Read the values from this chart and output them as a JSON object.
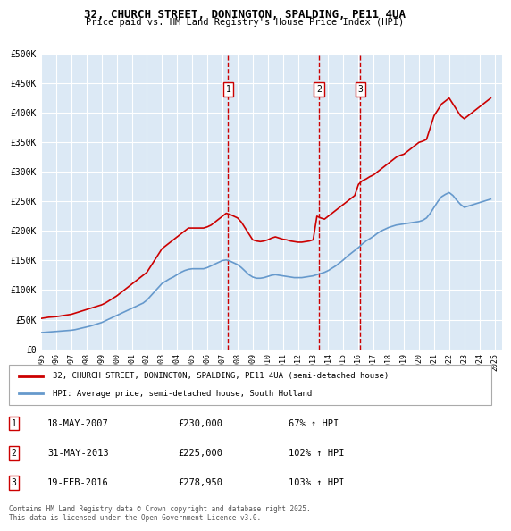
{
  "title": "32, CHURCH STREET, DONINGTON, SPALDING, PE11 4UA",
  "subtitle": "Price paid vs. HM Land Registry's House Price Index (HPI)",
  "bg_color": "#dce9f5",
  "plot_bg_color": "#dce9f5",
  "red_line_color": "#cc0000",
  "blue_line_color": "#6699cc",
  "ylim": [
    0,
    500000
  ],
  "yticks": [
    0,
    50000,
    100000,
    150000,
    200000,
    250000,
    300000,
    350000,
    400000,
    450000,
    500000
  ],
  "ytick_labels": [
    "£0",
    "£50K",
    "£100K",
    "£150K",
    "£200K",
    "£250K",
    "£300K",
    "£350K",
    "£400K",
    "£450K",
    "£500K"
  ],
  "transaction_dates": [
    "2007-05-18",
    "2013-05-31",
    "2016-02-19"
  ],
  "transaction_prices": [
    230000,
    225000,
    278950
  ],
  "transaction_labels": [
    "1",
    "2",
    "3"
  ],
  "vline_color": "#cc0000",
  "legend_entries": [
    "32, CHURCH STREET, DONINGTON, SPALDING, PE11 4UA (semi-detached house)",
    "HPI: Average price, semi-detached house, South Holland"
  ],
  "table_entries": [
    {
      "num": "1",
      "date": "18-MAY-2007",
      "price": "£230,000",
      "hpi": "67% ↑ HPI"
    },
    {
      "num": "2",
      "date": "31-MAY-2013",
      "price": "£225,000",
      "hpi": "102% ↑ HPI"
    },
    {
      "num": "3",
      "date": "19-FEB-2016",
      "price": "£278,950",
      "hpi": "103% ↑ HPI"
    }
  ],
  "footer": "Contains HM Land Registry data © Crown copyright and database right 2025.\nThis data is licensed under the Open Government Licence v3.0.",
  "red_data": {
    "years": [
      1995.0,
      1995.25,
      1995.5,
      1995.75,
      1996.0,
      1996.25,
      1996.5,
      1996.75,
      1997.0,
      1997.25,
      1997.5,
      1997.75,
      1998.0,
      1998.25,
      1998.5,
      1998.75,
      1999.0,
      1999.25,
      1999.5,
      1999.75,
      2000.0,
      2000.25,
      2000.5,
      2000.75,
      2001.0,
      2001.25,
      2001.5,
      2001.75,
      2002.0,
      2002.25,
      2002.5,
      2002.75,
      2003.0,
      2003.25,
      2003.5,
      2003.75,
      2004.0,
      2004.25,
      2004.5,
      2004.75,
      2005.0,
      2005.25,
      2005.5,
      2005.75,
      2006.0,
      2006.25,
      2006.5,
      2006.75,
      2007.0,
      2007.25,
      2007.5,
      2007.75,
      2008.0,
      2008.25,
      2008.5,
      2008.75,
      2009.0,
      2009.25,
      2009.5,
      2009.75,
      2010.0,
      2010.25,
      2010.5,
      2010.75,
      2011.0,
      2011.25,
      2011.5,
      2011.75,
      2012.0,
      2012.25,
      2012.5,
      2012.75,
      2013.0,
      2013.25,
      2013.5,
      2013.75,
      2014.0,
      2014.25,
      2014.5,
      2014.75,
      2015.0,
      2015.25,
      2015.5,
      2015.75,
      2016.0,
      2016.25,
      2016.5,
      2016.75,
      2017.0,
      2017.25,
      2017.5,
      2017.75,
      2018.0,
      2018.25,
      2018.5,
      2018.75,
      2019.0,
      2019.25,
      2019.5,
      2019.75,
      2020.0,
      2020.25,
      2020.5,
      2020.75,
      2021.0,
      2021.25,
      2021.5,
      2021.75,
      2022.0,
      2022.25,
      2022.5,
      2022.75,
      2023.0,
      2023.25,
      2023.5,
      2023.75,
      2024.0,
      2024.25,
      2024.5,
      2024.75
    ],
    "values": [
      52000,
      53000,
      54000,
      54500,
      55000,
      56000,
      57000,
      58000,
      59000,
      61000,
      63000,
      65000,
      67000,
      69000,
      71000,
      73000,
      75000,
      78000,
      82000,
      86000,
      90000,
      95000,
      100000,
      105000,
      110000,
      115000,
      120000,
      125000,
      130000,
      140000,
      150000,
      160000,
      170000,
      175000,
      180000,
      185000,
      190000,
      195000,
      200000,
      205000,
      205000,
      205000,
      205000,
      205000,
      207000,
      210000,
      215000,
      220000,
      225000,
      230000,
      228000,
      225000,
      222000,
      215000,
      205000,
      195000,
      185000,
      183000,
      182000,
      183000,
      185000,
      188000,
      190000,
      188000,
      186000,
      185000,
      183000,
      182000,
      181000,
      181000,
      182000,
      183000,
      185000,
      225000,
      222000,
      220000,
      225000,
      230000,
      235000,
      240000,
      245000,
      250000,
      255000,
      260000,
      278950,
      285000,
      288000,
      292000,
      295000,
      300000,
      305000,
      310000,
      315000,
      320000,
      325000,
      328000,
      330000,
      335000,
      340000,
      345000,
      350000,
      352000,
      355000,
      375000,
      395000,
      405000,
      415000,
      420000,
      425000,
      415000,
      405000,
      395000,
      390000,
      395000,
      400000,
      405000,
      410000,
      415000,
      420000,
      425000
    ]
  },
  "blue_data": {
    "years": [
      1995.0,
      1995.25,
      1995.5,
      1995.75,
      1996.0,
      1996.25,
      1996.5,
      1996.75,
      1997.0,
      1997.25,
      1997.5,
      1997.75,
      1998.0,
      1998.25,
      1998.5,
      1998.75,
      1999.0,
      1999.25,
      1999.5,
      1999.75,
      2000.0,
      2000.25,
      2000.5,
      2000.75,
      2001.0,
      2001.25,
      2001.5,
      2001.75,
      2002.0,
      2002.25,
      2002.5,
      2002.75,
      2003.0,
      2003.25,
      2003.5,
      2003.75,
      2004.0,
      2004.25,
      2004.5,
      2004.75,
      2005.0,
      2005.25,
      2005.5,
      2005.75,
      2006.0,
      2006.25,
      2006.5,
      2006.75,
      2007.0,
      2007.25,
      2007.5,
      2007.75,
      2008.0,
      2008.25,
      2008.5,
      2008.75,
      2009.0,
      2009.25,
      2009.5,
      2009.75,
      2010.0,
      2010.25,
      2010.5,
      2010.75,
      2011.0,
      2011.25,
      2011.5,
      2011.75,
      2012.0,
      2012.25,
      2012.5,
      2012.75,
      2013.0,
      2013.25,
      2013.5,
      2013.75,
      2014.0,
      2014.25,
      2014.5,
      2014.75,
      2015.0,
      2015.25,
      2015.5,
      2015.75,
      2016.0,
      2016.25,
      2016.5,
      2016.75,
      2017.0,
      2017.25,
      2017.5,
      2017.75,
      2018.0,
      2018.25,
      2018.5,
      2018.75,
      2019.0,
      2019.25,
      2019.5,
      2019.75,
      2020.0,
      2020.25,
      2020.5,
      2020.75,
      2021.0,
      2021.25,
      2021.5,
      2021.75,
      2022.0,
      2022.25,
      2022.5,
      2022.75,
      2023.0,
      2023.25,
      2023.5,
      2023.75,
      2024.0,
      2024.25,
      2024.5,
      2024.75
    ],
    "values": [
      28000,
      28500,
      29000,
      29500,
      30000,
      30500,
      31000,
      31500,
      32000,
      33000,
      34500,
      36000,
      37500,
      39000,
      41000,
      43000,
      45000,
      48000,
      51000,
      54000,
      57000,
      60000,
      63000,
      66000,
      69000,
      72000,
      75000,
      78000,
      83000,
      90000,
      97000,
      104000,
      111000,
      115000,
      119000,
      122000,
      126000,
      130000,
      133000,
      135000,
      136000,
      136000,
      136000,
      136000,
      138000,
      141000,
      144000,
      147000,
      150000,
      151000,
      149000,
      146000,
      143000,
      138000,
      132000,
      126000,
      122000,
      120000,
      120000,
      121000,
      123000,
      125000,
      126000,
      125000,
      124000,
      123000,
      122000,
      121000,
      121000,
      121000,
      122000,
      123000,
      124000,
      126000,
      128000,
      130000,
      133000,
      137000,
      141000,
      146000,
      151000,
      157000,
      162000,
      167000,
      172000,
      178000,
      183000,
      187000,
      191000,
      196000,
      200000,
      203000,
      206000,
      208000,
      210000,
      211000,
      212000,
      213000,
      214000,
      215000,
      216000,
      218000,
      222000,
      230000,
      240000,
      250000,
      258000,
      262000,
      265000,
      260000,
      252000,
      245000,
      240000,
      242000,
      244000,
      246000,
      248000,
      250000,
      252000,
      254000
    ]
  }
}
